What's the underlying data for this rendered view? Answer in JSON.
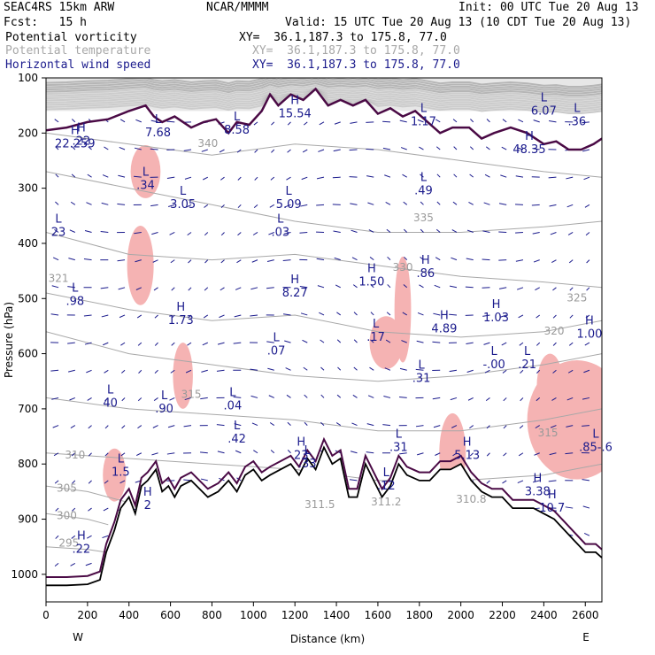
{
  "header": {
    "model": "SEAC4RS 15km ARW",
    "center": "NCAR/MMMM",
    "init": "Init: 00 UTC Tue 20 Aug 13",
    "fcst": "Fcst:   15 h",
    "valid": "Valid: 15 UTC Tue 20 Aug 13 (10 CDT Tue 20 Aug 13)",
    "fields": [
      {
        "name": "Potential vorticity",
        "xy": "XY=  36.1,187.3 to 175.8, 77.0",
        "color": "#000000"
      },
      {
        "name": "Potential temperature",
        "xy": "XY=  36.1,187.3 to 175.8, 77.0",
        "color": "#a8a8a8"
      },
      {
        "name": "Horizontal wind speed",
        "xy": "XY=  36.1,187.3 to 175.8, 77.0",
        "color": "#1a1a8c"
      }
    ]
  },
  "chart_data": {
    "type": "cross-section",
    "xlabel": "Distance (km)",
    "ylabel": "Pressure (hPa)",
    "xlim": [
      0,
      2680
    ],
    "ylim": [
      1050,
      100
    ],
    "x_ticks": [
      "0",
      "200",
      "400",
      "600",
      "800",
      "1000",
      "1200",
      "1400",
      "1600",
      "1800",
      "2000",
      "2200",
      "2400",
      "2600"
    ],
    "y_ticks": [
      "100",
      "200",
      "300",
      "400",
      "500",
      "600",
      "700",
      "800",
      "900",
      "1000"
    ],
    "end_labels": {
      "left": "W",
      "right": "E"
    },
    "colors": {
      "pv": "#4a0a45",
      "theta": "#a8a8a8",
      "wind": "#1a1a8c",
      "terrain": "#000000",
      "shade": "#f5b3b3"
    },
    "terrain": [
      [
        0,
        1020
      ],
      [
        100,
        1020
      ],
      [
        200,
        1018
      ],
      [
        260,
        1010
      ],
      [
        290,
        960
      ],
      [
        330,
        920
      ],
      [
        360,
        880
      ],
      [
        400,
        860
      ],
      [
        430,
        890
      ],
      [
        460,
        840
      ],
      [
        490,
        830
      ],
      [
        530,
        810
      ],
      [
        560,
        850
      ],
      [
        590,
        840
      ],
      [
        620,
        860
      ],
      [
        650,
        840
      ],
      [
        700,
        830
      ],
      [
        740,
        845
      ],
      [
        780,
        860
      ],
      [
        830,
        850
      ],
      [
        880,
        830
      ],
      [
        920,
        850
      ],
      [
        960,
        820
      ],
      [
        1000,
        810
      ],
      [
        1040,
        830
      ],
      [
        1080,
        820
      ],
      [
        1130,
        810
      ],
      [
        1180,
        800
      ],
      [
        1220,
        820
      ],
      [
        1260,
        790
      ],
      [
        1300,
        810
      ],
      [
        1340,
        770
      ],
      [
        1380,
        800
      ],
      [
        1420,
        790
      ],
      [
        1460,
        860
      ],
      [
        1500,
        860
      ],
      [
        1540,
        800
      ],
      [
        1580,
        830
      ],
      [
        1620,
        860
      ],
      [
        1660,
        840
      ],
      [
        1700,
        800
      ],
      [
        1740,
        820
      ],
      [
        1800,
        830
      ],
      [
        1850,
        830
      ],
      [
        1900,
        810
      ],
      [
        1950,
        810
      ],
      [
        2000,
        800
      ],
      [
        2050,
        830
      ],
      [
        2100,
        850
      ],
      [
        2150,
        860
      ],
      [
        2200,
        860
      ],
      [
        2250,
        880
      ],
      [
        2300,
        880
      ],
      [
        2350,
        880
      ],
      [
        2400,
        890
      ],
      [
        2450,
        900
      ],
      [
        2500,
        920
      ],
      [
        2550,
        940
      ],
      [
        2600,
        960
      ],
      [
        2650,
        960
      ],
      [
        2680,
        970
      ]
    ],
    "pv_upper": [
      [
        0,
        195
      ],
      [
        100,
        190
      ],
      [
        200,
        180
      ],
      [
        300,
        175
      ],
      [
        400,
        160
      ],
      [
        480,
        150
      ],
      [
        520,
        170
      ],
      [
        560,
        180
      ],
      [
        620,
        170
      ],
      [
        700,
        190
      ],
      [
        760,
        180
      ],
      [
        820,
        175
      ],
      [
        880,
        200
      ],
      [
        920,
        180
      ],
      [
        980,
        185
      ],
      [
        1040,
        160
      ],
      [
        1080,
        130
      ],
      [
        1120,
        150
      ],
      [
        1180,
        130
      ],
      [
        1240,
        140
      ],
      [
        1300,
        120
      ],
      [
        1360,
        150
      ],
      [
        1420,
        140
      ],
      [
        1480,
        150
      ],
      [
        1540,
        140
      ],
      [
        1600,
        165
      ],
      [
        1660,
        155
      ],
      [
        1720,
        170
      ],
      [
        1780,
        160
      ],
      [
        1840,
        180
      ],
      [
        1900,
        200
      ],
      [
        1960,
        190
      ],
      [
        2040,
        190
      ],
      [
        2100,
        210
      ],
      [
        2160,
        200
      ],
      [
        2240,
        190
      ],
      [
        2320,
        200
      ],
      [
        2400,
        220
      ],
      [
        2460,
        215
      ],
      [
        2520,
        230
      ],
      [
        2580,
        230
      ],
      [
        2640,
        220
      ],
      [
        2680,
        210
      ]
    ],
    "theta_levels": [
      {
        "label": "340",
        "pts": [
          [
            0,
            200
          ],
          [
            400,
            220
          ],
          [
            800,
            240
          ],
          [
            1200,
            220
          ],
          [
            1600,
            230
          ],
          [
            2000,
            250
          ],
          [
            2400,
            270
          ],
          [
            2680,
            280
          ]
        ]
      },
      {
        "label": "335",
        "pts": [
          [
            0,
            270
          ],
          [
            400,
            300
          ],
          [
            800,
            330
          ],
          [
            1200,
            360
          ],
          [
            1600,
            380
          ],
          [
            2000,
            380
          ],
          [
            2400,
            370
          ],
          [
            2680,
            360
          ]
        ]
      },
      {
        "label": "330",
        "pts": [
          [
            0,
            380
          ],
          [
            400,
            420
          ],
          [
            800,
            430
          ],
          [
            1200,
            420
          ],
          [
            1600,
            440
          ],
          [
            2000,
            460
          ],
          [
            2400,
            470
          ],
          [
            2680,
            480
          ]
        ]
      },
      {
        "label": "325",
        "pts": [
          [
            0,
            490
          ],
          [
            400,
            520
          ],
          [
            800,
            540
          ],
          [
            1200,
            530
          ],
          [
            1600,
            560
          ],
          [
            2000,
            570
          ],
          [
            2400,
            560
          ],
          [
            2680,
            540
          ]
        ]
      },
      {
        "label": "320",
        "pts": [
          [
            0,
            560
          ],
          [
            400,
            600
          ],
          [
            800,
            620
          ],
          [
            1200,
            640
          ],
          [
            1600,
            650
          ],
          [
            2000,
            640
          ],
          [
            2400,
            620
          ],
          [
            2680,
            600
          ]
        ]
      },
      {
        "label": "315",
        "pts": [
          [
            0,
            680
          ],
          [
            400,
            700
          ],
          [
            800,
            710
          ],
          [
            1200,
            720
          ],
          [
            1600,
            740
          ],
          [
            2000,
            740
          ],
          [
            2400,
            720
          ],
          [
            2680,
            700
          ]
        ]
      },
      {
        "label": "310",
        "pts": [
          [
            0,
            780
          ],
          [
            400,
            790
          ],
          [
            800,
            800
          ],
          [
            1200,
            810
          ],
          [
            1600,
            830
          ],
          [
            2000,
            830
          ],
          [
            2400,
            820
          ],
          [
            2680,
            800
          ]
        ]
      },
      {
        "label": "305",
        "pts": [
          [
            0,
            840
          ],
          [
            200,
            850
          ],
          [
            400,
            870
          ]
        ]
      },
      {
        "label": "300",
        "pts": [
          [
            0,
            890
          ],
          [
            200,
            900
          ],
          [
            300,
            910
          ]
        ]
      },
      {
        "label": "295",
        "pts": [
          [
            0,
            950
          ],
          [
            200,
            955
          ],
          [
            290,
            960
          ]
        ]
      }
    ],
    "markers": [
      {
        "sym": "H",
        "val": ".22",
        "x": 170,
        "p": 210
      },
      {
        "sym": "H",
        "val": "22.259",
        "x": 140,
        "p": 215
      },
      {
        "sym": "L",
        "val": "7.68",
        "x": 540,
        "p": 195
      },
      {
        "sym": "L",
        "val": "8.58",
        "x": 920,
        "p": 190
      },
      {
        "sym": "H",
        "val": "15.54",
        "x": 1200,
        "p": 160
      },
      {
        "sym": "L",
        "val": "1.17",
        "x": 1820,
        "p": 175
      },
      {
        "sym": "L",
        "val": "6.07",
        "x": 2400,
        "p": 155
      },
      {
        "sym": "L",
        "val": ".36",
        "x": 2560,
        "p": 175
      },
      {
        "sym": "H",
        "val": "48.35",
        "x": 2330,
        "p": 225
      },
      {
        "sym": "L",
        "val": ".34",
        "x": 480,
        "p": 290
      },
      {
        "sym": "L",
        "val": "3.05",
        "x": 660,
        "p": 325
      },
      {
        "sym": "L",
        "val": "5.09",
        "x": 1170,
        "p": 325
      },
      {
        "sym": "L",
        "val": ".49",
        "x": 1820,
        "p": 300
      },
      {
        "sym": "L",
        "val": "23",
        "x": 60,
        "p": 375
      },
      {
        "sym": "L",
        "val": ".03",
        "x": 1130,
        "p": 375
      },
      {
        "sym": "L",
        "val": ".98",
        "x": 140,
        "p": 500
      },
      {
        "sym": "H",
        "val": "8.27",
        "x": 1200,
        "p": 485
      },
      {
        "sym": "H",
        "val": "1.50",
        "x": 1570,
        "p": 465
      },
      {
        "sym": "H",
        "val": ".86",
        "x": 1830,
        "p": 450
      },
      {
        "sym": "H",
        "val": "1.73",
        "x": 650,
        "p": 535
      },
      {
        "sym": "L",
        "val": ".17",
        "x": 1590,
        "p": 565
      },
      {
        "sym": "H",
        "val": "4.89",
        "x": 1920,
        "p": 550
      },
      {
        "sym": "H",
        "val": "1.03",
        "x": 2170,
        "p": 530
      },
      {
        "sym": "H",
        "val": "1.00",
        "x": 2620,
        "p": 560
      },
      {
        "sym": "L",
        "val": ".07",
        "x": 1110,
        "p": 590
      },
      {
        "sym": "L",
        "val": "-.00",
        "x": 2160,
        "p": 615
      },
      {
        "sym": "L",
        "val": ".21",
        "x": 2320,
        "p": 615
      },
      {
        "sym": "L",
        "val": ".31",
        "x": 1810,
        "p": 640
      },
      {
        "sym": "L",
        "val": "40",
        "x": 310,
        "p": 685
      },
      {
        "sym": "L",
        "val": ".90",
        "x": 570,
        "p": 695
      },
      {
        "sym": "L",
        "val": ".04",
        "x": 900,
        "p": 690
      },
      {
        "sym": "L",
        "val": ".42",
        "x": 920,
        "p": 750
      },
      {
        "sym": "L",
        "val": ".31",
        "x": 1700,
        "p": 765
      },
      {
        "sym": "H",
        "val": "5.13",
        "x": 2030,
        "p": 780
      },
      {
        "sym": "L",
        "val": ".85-.6",
        "x": 2650,
        "p": 765
      },
      {
        "sym": "L",
        "val": "1.5",
        "x": 360,
        "p": 810
      },
      {
        "sym": "H",
        "val": "23",
        "x": 1230,
        "p": 780
      },
      {
        "sym": "L",
        "val": ".33",
        "x": 1260,
        "p": 795
      },
      {
        "sym": "L",
        "val": ".12",
        "x": 1640,
        "p": 835
      },
      {
        "sym": "H",
        "val": "3.38",
        "x": 2370,
        "p": 845
      },
      {
        "sym": "H",
        "val": "10.7",
        "x": 2440,
        "p": 875
      },
      {
        "sym": "H",
        "val": "2",
        "x": 490,
        "p": 870
      },
      {
        "sym": "H",
        "val": ".22",
        "x": 170,
        "p": 950
      }
    ],
    "theta_labels": [
      {
        "val": "340",
        "x": 780,
        "p": 225
      },
      {
        "val": "335",
        "x": 1820,
        "p": 360
      },
      {
        "val": "330",
        "x": 1720,
        "p": 450
      },
      {
        "val": "325",
        "x": 2560,
        "p": 505
      },
      {
        "val": "321",
        "x": 60,
        "p": 470
      },
      {
        "val": "320",
        "x": 2450,
        "p": 565
      },
      {
        "val": "315",
        "x": 700,
        "p": 680
      },
      {
        "val": "310",
        "x": 140,
        "p": 790
      },
      {
        "val": "305",
        "x": 100,
        "p": 850
      },
      {
        "val": "300",
        "x": 100,
        "p": 900
      },
      {
        "val": "295",
        "x": 110,
        "p": 950
      },
      {
        "val": "311.5",
        "x": 1320,
        "p": 880
      },
      {
        "val": "311.2",
        "x": 1640,
        "p": 875
      },
      {
        "val": "310.8",
        "x": 2050,
        "p": 870
      },
      {
        "val": "315",
        "x": 2420,
        "p": 750
      }
    ]
  }
}
